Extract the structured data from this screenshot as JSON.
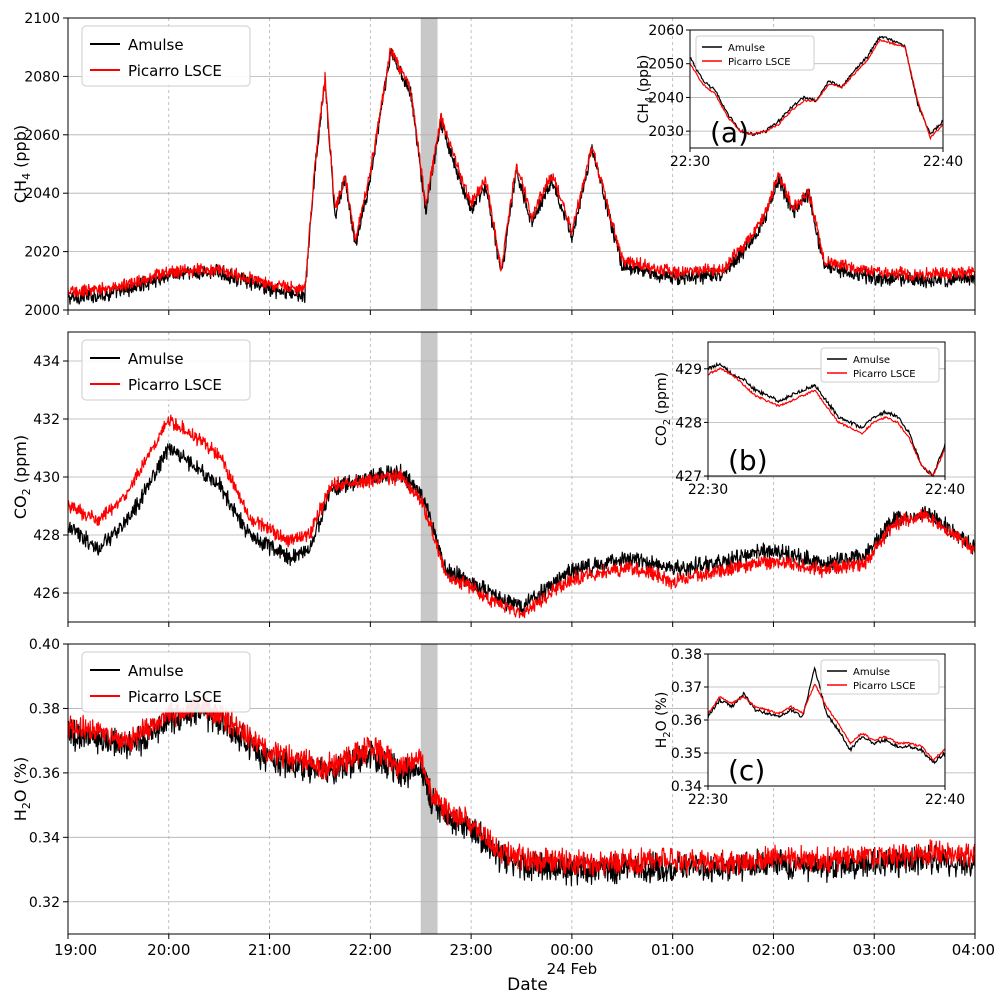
{
  "figure": {
    "xlabel": "Date",
    "x_ticks": [
      "19:00",
      "20:00",
      "21:00",
      "22:00",
      "23:00",
      "00:00",
      "01:00",
      "02:00",
      "03:00",
      "04:00"
    ],
    "x_sublabel": "24 Feb",
    "x_range_hours": [
      19,
      28
    ],
    "highlight_band_hours": [
      22.5,
      22.667
    ],
    "colors": {
      "amulse": "#000000",
      "picarro": "#ff0000",
      "band": "#c8c8c8",
      "grid": "#b0b0b0"
    }
  },
  "chart_data": [
    {
      "type": "line",
      "ylabel_main": "CH",
      "ylabel_sub": "4",
      "ylabel_unit": " (ppb)",
      "ylim": [
        2000,
        2100
      ],
      "y_ticks": [
        "2000",
        "2020",
        "2040",
        "2060",
        "2080",
        "2100"
      ],
      "legend": [
        "Amulse",
        "Picarro LSCE"
      ],
      "legend_loc": "upper-left",
      "x": [
        19.0,
        19.5,
        20.0,
        20.5,
        21.0,
        21.35,
        21.45,
        21.55,
        21.65,
        21.75,
        21.85,
        22.0,
        22.2,
        22.4,
        22.55,
        22.7,
        22.85,
        23.0,
        23.15,
        23.3,
        23.45,
        23.6,
        23.8,
        24.0,
        24.2,
        24.5,
        25.0,
        25.5,
        25.7,
        25.9,
        26.05,
        26.2,
        26.35,
        26.5,
        27.0,
        27.5,
        28.0
      ],
      "series": [
        {
          "name": "Amulse",
          "values": [
            2004,
            2006,
            2012,
            2013,
            2007,
            2005,
            2048,
            2078,
            2032,
            2045,
            2022,
            2045,
            2088,
            2075,
            2034,
            2065,
            2048,
            2035,
            2042,
            2012,
            2048,
            2030,
            2045,
            2025,
            2055,
            2015,
            2011,
            2012,
            2020,
            2030,
            2045,
            2033,
            2040,
            2015,
            2011,
            2010,
            2011
          ]
        },
        {
          "name": "Picarro LSCE",
          "values": [
            2006,
            2008,
            2013,
            2014,
            2009,
            2007,
            2050,
            2079,
            2034,
            2046,
            2024,
            2047,
            2089,
            2076,
            2036,
            2066,
            2050,
            2037,
            2044,
            2014,
            2050,
            2032,
            2047,
            2027,
            2056,
            2017,
            2013,
            2014,
            2022,
            2032,
            2046,
            2035,
            2041,
            2017,
            2013,
            2012,
            2013
          ]
        }
      ],
      "inset": {
        "label": "(a)",
        "ylim": [
          2025,
          2060
        ],
        "y_ticks": [
          "2030",
          "2040",
          "2050",
          "2060"
        ],
        "x_ticks": [
          "22:30",
          "22:40"
        ],
        "ylabel_main": "CH",
        "ylabel_sub": "4",
        "ylabel_unit": " (ppb)",
        "legend": [
          "Amulse",
          "Picarro LSCE"
        ],
        "legend_loc": "upper-left",
        "x_minutes": [
          0,
          0.5,
          1,
          1.5,
          2,
          2.5,
          3,
          3.5,
          4,
          4.5,
          5,
          5.5,
          6,
          6.5,
          7,
          7.5,
          8,
          8.5,
          9,
          9.5,
          10
        ],
        "series": [
          {
            "name": "Amulse",
            "values": [
              2052,
              2045,
              2042,
              2035,
              2030,
              2029,
              2030,
              2033,
              2037,
              2040,
              2039,
              2045,
              2043,
              2048,
              2052,
              2058,
              2057,
              2055,
              2038,
              2029,
              2033
            ]
          },
          {
            "name": "Picarro LSCE",
            "values": [
              2050,
              2044,
              2041,
              2034,
              2030,
              2029,
              2030,
              2032,
              2036,
              2039,
              2039,
              2044,
              2043,
              2047,
              2051,
              2057,
              2056,
              2055,
              2039,
              2028,
              2032
            ]
          }
        ]
      }
    },
    {
      "type": "line",
      "ylabel_main": "CO",
      "ylabel_sub": "2",
      "ylabel_unit": " (ppm)",
      "ylim": [
        425,
        435
      ],
      "y_ticks": [
        "426",
        "428",
        "430",
        "432",
        "434"
      ],
      "legend": [
        "Amulse",
        "Picarro LSCE"
      ],
      "legend_loc": "upper-left",
      "x": [
        19.0,
        19.3,
        19.6,
        20.0,
        20.2,
        20.5,
        20.8,
        21.2,
        21.4,
        21.6,
        21.8,
        22.0,
        22.3,
        22.5,
        22.6,
        22.75,
        23.0,
        23.2,
        23.5,
        23.8,
        24.0,
        24.3,
        24.6,
        25.0,
        25.5,
        26.0,
        26.5,
        26.9,
        27.2,
        27.5,
        28.0
      ],
      "series": [
        {
          "name": "Amulse",
          "values": [
            428.3,
            427.5,
            428.5,
            431.0,
            430.5,
            429.7,
            428.0,
            427.2,
            427.5,
            429.5,
            429.8,
            430.0,
            430.2,
            429.4,
            428.5,
            426.8,
            426.4,
            425.9,
            425.5,
            426.3,
            426.8,
            427.0,
            427.2,
            426.8,
            427.1,
            427.5,
            427.0,
            427.3,
            428.5,
            428.8,
            427.6
          ]
        },
        {
          "name": "Picarro LSCE",
          "values": [
            429.0,
            428.5,
            429.5,
            432.0,
            431.5,
            430.8,
            428.6,
            427.8,
            428.0,
            429.7,
            429.8,
            429.9,
            430.0,
            429.2,
            428.3,
            426.6,
            426.2,
            425.7,
            425.3,
            426.0,
            426.5,
            426.7,
            426.9,
            426.4,
            426.8,
            427.1,
            426.8,
            427.0,
            428.4,
            428.7,
            427.5
          ]
        }
      ],
      "inset": {
        "label": "(b)",
        "ylim": [
          427,
          429.5
        ],
        "y_ticks": [
          "427",
          "428",
          "429"
        ],
        "x_ticks": [
          "22:30",
          "22:40"
        ],
        "ylabel_main": "CO",
        "ylabel_sub": "2",
        "ylabel_unit": " (ppm)",
        "legend": [
          "Amulse",
          "Picarro LSCE"
        ],
        "legend_loc": "upper-right",
        "x_minutes": [
          0,
          0.5,
          1,
          1.5,
          2,
          2.5,
          3,
          3.5,
          4,
          4.5,
          5,
          5.5,
          6,
          6.5,
          7,
          7.5,
          8,
          8.5,
          9,
          9.5,
          10
        ],
        "series": [
          {
            "name": "Amulse",
            "values": [
              429.0,
              429.1,
              428.9,
              428.8,
              428.6,
              428.5,
              428.4,
              428.5,
              428.6,
              428.7,
              428.4,
              428.1,
              428.0,
              427.9,
              428.1,
              428.2,
              428.1,
              427.8,
              427.2,
              427.0,
              427.6
            ]
          },
          {
            "name": "Picarro LSCE",
            "values": [
              428.9,
              429.0,
              428.9,
              428.7,
              428.5,
              428.4,
              428.3,
              428.4,
              428.5,
              428.6,
              428.3,
              428.0,
              427.9,
              427.8,
              428.0,
              428.1,
              428.0,
              427.7,
              427.2,
              427.0,
              427.5
            ]
          }
        ]
      }
    },
    {
      "type": "line",
      "ylabel_main": "H",
      "ylabel_sub": "2",
      "ylabel_unit": "O (%)",
      "ylim": [
        0.31,
        0.4
      ],
      "y_ticks": [
        "0.32",
        "0.34",
        "0.36",
        "0.38",
        "0.40"
      ],
      "legend": [
        "Amulse",
        "Picarro LSCE"
      ],
      "legend_loc": "upper-left",
      "x": [
        19.0,
        19.3,
        19.6,
        20.0,
        20.3,
        20.6,
        21.0,
        21.3,
        21.6,
        22.0,
        22.3,
        22.5,
        22.6,
        22.8,
        23.0,
        23.3,
        23.6,
        24.0,
        24.5,
        25.0,
        25.5,
        26.0,
        26.5,
        27.0,
        27.5,
        28.0
      ],
      "series": [
        {
          "name": "Amulse",
          "values": [
            0.372,
            0.371,
            0.368,
            0.376,
            0.379,
            0.374,
            0.364,
            0.362,
            0.36,
            0.366,
            0.36,
            0.362,
            0.352,
            0.345,
            0.343,
            0.333,
            0.331,
            0.33,
            0.33,
            0.331,
            0.33,
            0.332,
            0.331,
            0.332,
            0.333,
            0.332
          ]
        },
        {
          "name": "Picarro LSCE",
          "values": [
            0.374,
            0.373,
            0.37,
            0.378,
            0.381,
            0.376,
            0.366,
            0.364,
            0.362,
            0.368,
            0.362,
            0.364,
            0.354,
            0.347,
            0.345,
            0.335,
            0.333,
            0.332,
            0.332,
            0.333,
            0.332,
            0.334,
            0.333,
            0.334,
            0.335,
            0.334
          ]
        }
      ],
      "inset": {
        "label": "(c)",
        "ylim": [
          0.34,
          0.38
        ],
        "y_ticks": [
          "0.34",
          "0.35",
          "0.36",
          "0.37",
          "0.38"
        ],
        "x_ticks": [
          "22:30",
          "22:40"
        ],
        "ylabel_main": "H",
        "ylabel_sub": "2",
        "ylabel_unit": "O (%)",
        "legend": [
          "Amulse",
          "Picarro LSCE"
        ],
        "legend_loc": "upper-right",
        "x_minutes": [
          0,
          0.5,
          1,
          1.5,
          2,
          2.5,
          3,
          3.5,
          4,
          4.5,
          5,
          5.5,
          6,
          6.5,
          7,
          7.5,
          8,
          8.5,
          9,
          9.5,
          10
        ],
        "series": [
          {
            "name": "Amulse",
            "values": [
              0.361,
              0.366,
              0.364,
              0.368,
              0.363,
              0.362,
              0.361,
              0.363,
              0.361,
              0.376,
              0.362,
              0.357,
              0.351,
              0.355,
              0.353,
              0.354,
              0.352,
              0.352,
              0.351,
              0.347,
              0.35
            ]
          },
          {
            "name": "Picarro LSCE",
            "values": [
              0.362,
              0.367,
              0.365,
              0.367,
              0.364,
              0.363,
              0.362,
              0.364,
              0.362,
              0.371,
              0.364,
              0.359,
              0.353,
              0.356,
              0.354,
              0.355,
              0.353,
              0.353,
              0.352,
              0.348,
              0.351
            ]
          }
        ]
      }
    }
  ]
}
